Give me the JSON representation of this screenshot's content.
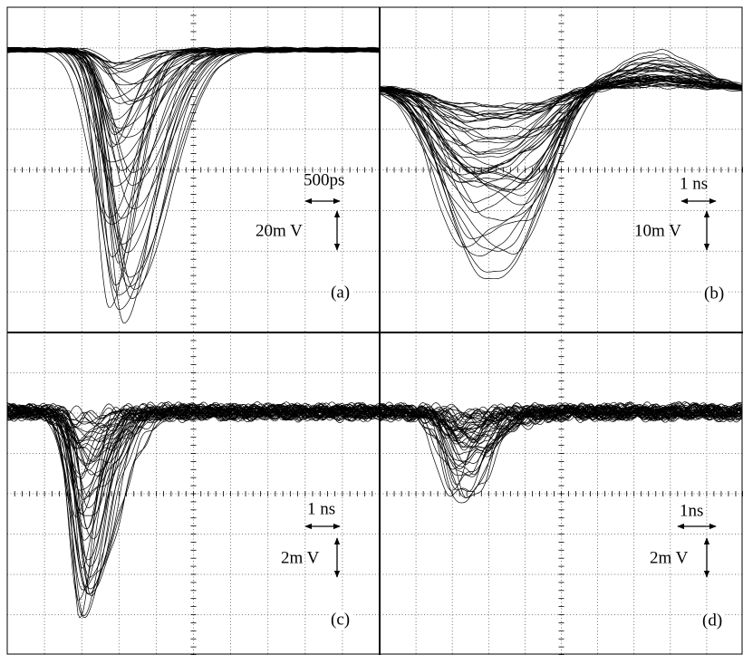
{
  "panels": [
    {
      "label": "(a)",
      "time_scale": "500ps",
      "voltage_scale": "20m V"
    },
    {
      "label": "(b)",
      "time_scale": "1 ns",
      "voltage_scale": "10m V"
    },
    {
      "label": "(c)",
      "time_scale": "1 ns",
      "voltage_scale": "2m V"
    },
    {
      "label": "(d)",
      "time_scale": "1ns",
      "voltage_scale": "2m V"
    }
  ]
}
